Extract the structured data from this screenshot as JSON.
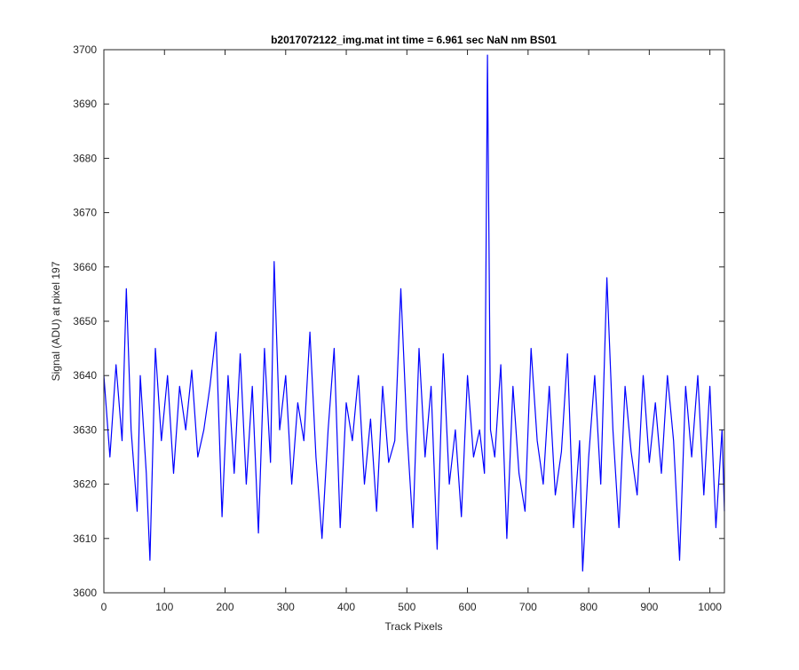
{
  "chart_data": {
    "type": "line",
    "title": "b2017072122_img.mat int time = 6.961 sec  NaN nm BS01",
    "xlabel": "Track Pixels",
    "ylabel": "Signal (ADU) at pixel 197",
    "xlim": [
      0,
      1024
    ],
    "ylim": [
      3600,
      3700
    ],
    "xticks": [
      0,
      100,
      200,
      300,
      400,
      500,
      600,
      700,
      800,
      900,
      1000
    ],
    "yticks": [
      3600,
      3610,
      3620,
      3630,
      3640,
      3650,
      3660,
      3670,
      3680,
      3690,
      3700
    ],
    "grid": false,
    "line_color": "#0000ff",
    "series": [
      {
        "x": [
          0,
          10,
          20,
          30,
          37,
          45,
          55,
          60,
          70,
          76,
          85,
          95,
          105,
          115,
          125,
          135,
          145,
          155,
          165,
          175,
          185,
          195,
          205,
          215,
          225,
          235,
          245,
          255,
          265,
          275,
          281,
          290,
          300,
          310,
          320,
          330,
          340,
          350,
          360,
          370,
          380,
          390,
          400,
          410,
          420,
          430,
          440,
          450,
          460,
          470,
          480,
          490,
          500,
          510,
          520,
          530,
          540,
          550,
          560,
          570,
          580,
          590,
          600,
          610,
          620,
          628,
          633,
          638,
          645,
          655,
          665,
          675,
          685,
          695,
          705,
          715,
          725,
          735,
          745,
          755,
          765,
          775,
          785,
          790,
          800,
          810,
          820,
          830,
          840,
          850,
          860,
          870,
          880,
          890,
          900,
          910,
          920,
          930,
          940,
          950,
          960,
          970,
          980,
          990,
          1000,
          1010,
          1020,
          1024
        ],
        "values": [
          3640,
          3625,
          3642,
          3628,
          3656,
          3630,
          3615,
          3640,
          3622,
          3606,
          3645,
          3628,
          3640,
          3622,
          3638,
          3630,
          3641,
          3625,
          3630,
          3638,
          3648,
          3614,
          3640,
          3622,
          3644,
          3620,
          3638,
          3611,
          3645,
          3624,
          3661,
          3630,
          3640,
          3620,
          3635,
          3628,
          3648,
          3625,
          3610,
          3630,
          3645,
          3612,
          3635,
          3628,
          3640,
          3620,
          3632,
          3615,
          3638,
          3624,
          3628,
          3656,
          3630,
          3612,
          3645,
          3625,
          3638,
          3608,
          3644,
          3620,
          3630,
          3614,
          3640,
          3625,
          3630,
          3622,
          3699,
          3630,
          3625,
          3642,
          3610,
          3638,
          3622,
          3615,
          3645,
          3628,
          3620,
          3638,
          3618,
          3626,
          3644,
          3612,
          3628,
          3604,
          3625,
          3640,
          3620,
          3658,
          3630,
          3612,
          3638,
          3626,
          3618,
          3640,
          3624,
          3635,
          3622,
          3640,
          3628,
          3606,
          3638,
          3625,
          3640,
          3618,
          3638,
          3612,
          3630,
          3615
        ]
      }
    ]
  }
}
